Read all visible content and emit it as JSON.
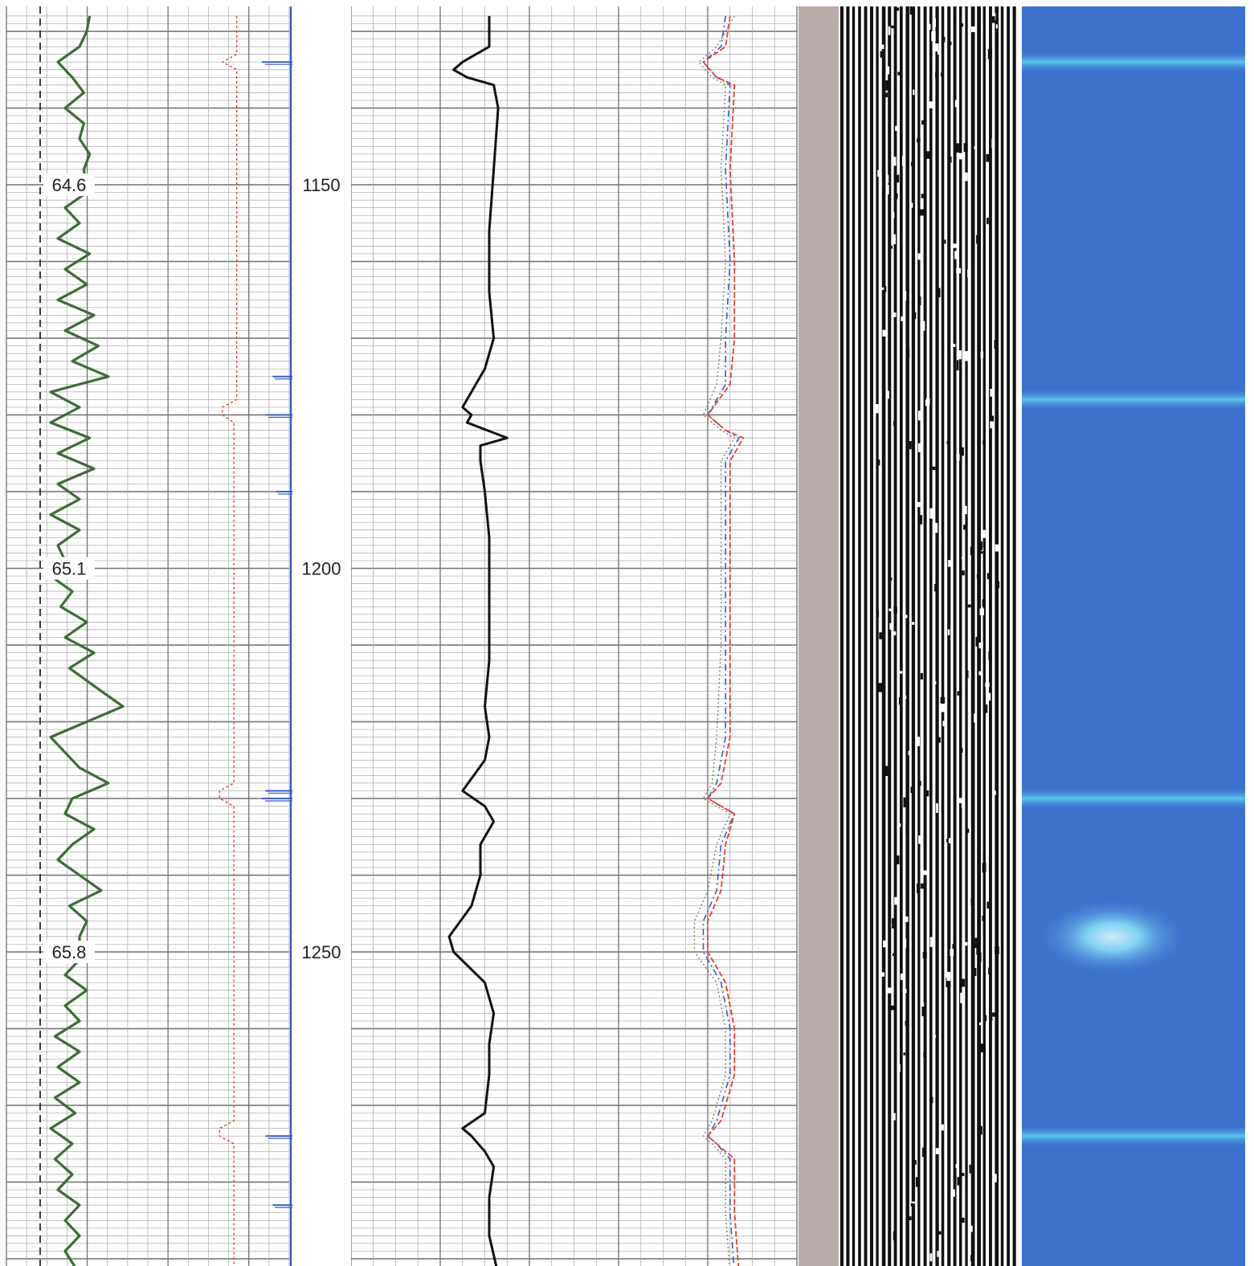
{
  "chart_data": {
    "type": "line",
    "depth_axis": {
      "ticks": [
        1150,
        1200,
        1250
      ],
      "range": [
        1128,
        1292
      ]
    },
    "left_track": {
      "markers": [
        {
          "depth": 1150,
          "label": "64.6"
        },
        {
          "depth": 1200,
          "label": "65.1"
        },
        {
          "depth": 1250,
          "label": "65.8"
        }
      ],
      "green_curve": [
        [
          1128,
          0.62
        ],
        [
          1130,
          0.6
        ],
        [
          1132,
          0.55
        ],
        [
          1134,
          0.4
        ],
        [
          1136,
          0.5
        ],
        [
          1138,
          0.58
        ],
        [
          1140,
          0.45
        ],
        [
          1142,
          0.58
        ],
        [
          1144,
          0.55
        ],
        [
          1146,
          0.62
        ],
        [
          1148,
          0.58
        ],
        [
          1151,
          0.6
        ],
        [
          1153,
          0.45
        ],
        [
          1155,
          0.55
        ],
        [
          1157,
          0.4
        ],
        [
          1159,
          0.62
        ],
        [
          1161,
          0.45
        ],
        [
          1163,
          0.6
        ],
        [
          1165,
          0.4
        ],
        [
          1167,
          0.65
        ],
        [
          1169,
          0.45
        ],
        [
          1171,
          0.68
        ],
        [
          1173,
          0.5
        ],
        [
          1175,
          0.75
        ],
        [
          1177,
          0.35
        ],
        [
          1179,
          0.55
        ],
        [
          1181,
          0.35
        ],
        [
          1183,
          0.62
        ],
        [
          1185,
          0.4
        ],
        [
          1187,
          0.65
        ],
        [
          1189,
          0.4
        ],
        [
          1191,
          0.55
        ],
        [
          1193,
          0.35
        ],
        [
          1195,
          0.55
        ],
        [
          1197,
          0.4
        ],
        [
          1199,
          0.45
        ],
        [
          1201,
          0.35
        ],
        [
          1203,
          0.5
        ],
        [
          1205,
          0.42
        ],
        [
          1207,
          0.6
        ],
        [
          1209,
          0.45
        ],
        [
          1211,
          0.65
        ],
        [
          1213,
          0.48
        ],
        [
          1216,
          0.7
        ],
        [
          1218,
          0.85
        ],
        [
          1220,
          0.6
        ],
        [
          1222,
          0.35
        ],
        [
          1224,
          0.45
        ],
        [
          1226,
          0.55
        ],
        [
          1228,
          0.75
        ],
        [
          1230,
          0.5
        ],
        [
          1232,
          0.45
        ],
        [
          1234,
          0.65
        ],
        [
          1236,
          0.5
        ],
        [
          1238,
          0.4
        ],
        [
          1240,
          0.55
        ],
        [
          1242,
          0.7
        ],
        [
          1244,
          0.48
        ],
        [
          1246,
          0.6
        ],
        [
          1248,
          0.55
        ],
        [
          1251,
          0.55
        ],
        [
          1253,
          0.45
        ],
        [
          1255,
          0.6
        ],
        [
          1257,
          0.45
        ],
        [
          1259,
          0.55
        ],
        [
          1261,
          0.38
        ],
        [
          1263,
          0.55
        ],
        [
          1265,
          0.4
        ],
        [
          1267,
          0.55
        ],
        [
          1269,
          0.38
        ],
        [
          1271,
          0.52
        ],
        [
          1273,
          0.35
        ],
        [
          1275,
          0.5
        ],
        [
          1277,
          0.38
        ],
        [
          1279,
          0.5
        ],
        [
          1281,
          0.4
        ],
        [
          1283,
          0.55
        ],
        [
          1285,
          0.45
        ],
        [
          1287,
          0.55
        ],
        [
          1289,
          0.45
        ],
        [
          1292,
          0.55
        ]
      ],
      "red_curve": [
        [
          1128,
          0.83
        ],
        [
          1133,
          0.83
        ],
        [
          1134,
          0.78
        ],
        [
          1135,
          0.83
        ],
        [
          1178,
          0.83
        ],
        [
          1179,
          0.78
        ],
        [
          1180,
          0.78
        ],
        [
          1181,
          0.82
        ],
        [
          1228,
          0.82
        ],
        [
          1229,
          0.77
        ],
        [
          1230,
          0.77
        ],
        [
          1231,
          0.82
        ],
        [
          1272,
          0.82
        ],
        [
          1273,
          0.77
        ],
        [
          1274,
          0.77
        ],
        [
          1275,
          0.82
        ],
        [
          1292,
          0.82
        ]
      ],
      "blue_ticks": [
        {
          "depth": 1134,
          "length": 0.8
        },
        {
          "depth": 1175,
          "length": 0.5
        },
        {
          "depth": 1180,
          "length": 0.7
        },
        {
          "depth": 1190,
          "length": 0.4
        },
        {
          "depth": 1229,
          "length": 0.7
        },
        {
          "depth": 1230,
          "length": 0.8
        },
        {
          "depth": 1274,
          "length": 0.7
        },
        {
          "depth": 1283,
          "length": 0.5
        }
      ]
    },
    "middle_track": {
      "black_curve": [
        [
          1128,
          0.31
        ],
        [
          1132,
          0.31
        ],
        [
          1134,
          0.25
        ],
        [
          1135,
          0.23
        ],
        [
          1136,
          0.26
        ],
        [
          1137,
          0.32
        ],
        [
          1140,
          0.33
        ],
        [
          1148,
          0.32
        ],
        [
          1156,
          0.31
        ],
        [
          1164,
          0.31
        ],
        [
          1170,
          0.32
        ],
        [
          1174,
          0.3
        ],
        [
          1176,
          0.28
        ],
        [
          1179,
          0.25
        ],
        [
          1180,
          0.27
        ],
        [
          1181,
          0.26
        ],
        [
          1183,
          0.35
        ],
        [
          1184,
          0.29
        ],
        [
          1186,
          0.29
        ],
        [
          1190,
          0.3
        ],
        [
          1196,
          0.31
        ],
        [
          1200,
          0.31
        ],
        [
          1206,
          0.31
        ],
        [
          1212,
          0.31
        ],
        [
          1218,
          0.3
        ],
        [
          1222,
          0.31
        ],
        [
          1225,
          0.3
        ],
        [
          1229,
          0.25
        ],
        [
          1231,
          0.3
        ],
        [
          1233,
          0.32
        ],
        [
          1236,
          0.29
        ],
        [
          1240,
          0.29
        ],
        [
          1244,
          0.27
        ],
        [
          1248,
          0.22
        ],
        [
          1250,
          0.23
        ],
        [
          1254,
          0.3
        ],
        [
          1258,
          0.32
        ],
        [
          1262,
          0.31
        ],
        [
          1266,
          0.31
        ],
        [
          1271,
          0.3
        ],
        [
          1273,
          0.25
        ],
        [
          1274,
          0.27
        ],
        [
          1276,
          0.3
        ],
        [
          1278,
          0.32
        ],
        [
          1282,
          0.31
        ],
        [
          1287,
          0.31
        ],
        [
          1292,
          0.33
        ]
      ],
      "red_curve": [
        [
          1128,
          0.85
        ],
        [
          1132,
          0.84
        ],
        [
          1134,
          0.79
        ],
        [
          1136,
          0.82
        ],
        [
          1137,
          0.86
        ],
        [
          1148,
          0.85
        ],
        [
          1160,
          0.86
        ],
        [
          1170,
          0.86
        ],
        [
          1176,
          0.85
        ],
        [
          1180,
          0.8
        ],
        [
          1182,
          0.84
        ],
        [
          1183,
          0.88
        ],
        [
          1186,
          0.85
        ],
        [
          1196,
          0.85
        ],
        [
          1210,
          0.85
        ],
        [
          1222,
          0.85
        ],
        [
          1228,
          0.83
        ],
        [
          1230,
          0.8
        ],
        [
          1231,
          0.83
        ],
        [
          1232,
          0.86
        ],
        [
          1236,
          0.84
        ],
        [
          1242,
          0.83
        ],
        [
          1246,
          0.8
        ],
        [
          1250,
          0.8
        ],
        [
          1254,
          0.84
        ],
        [
          1260,
          0.86
        ],
        [
          1266,
          0.86
        ],
        [
          1272,
          0.83
        ],
        [
          1274,
          0.8
        ],
        [
          1275,
          0.82
        ],
        [
          1277,
          0.86
        ],
        [
          1284,
          0.86
        ],
        [
          1292,
          0.87
        ]
      ],
      "blue_curve": [
        [
          1128,
          0.84
        ],
        [
          1132,
          0.83
        ],
        [
          1134,
          0.79
        ],
        [
          1136,
          0.82
        ],
        [
          1137,
          0.85
        ],
        [
          1148,
          0.84
        ],
        [
          1160,
          0.85
        ],
        [
          1170,
          0.84
        ],
        [
          1176,
          0.84
        ],
        [
          1180,
          0.8
        ],
        [
          1182,
          0.84
        ],
        [
          1183,
          0.87
        ],
        [
          1186,
          0.84
        ],
        [
          1196,
          0.84
        ],
        [
          1210,
          0.84
        ],
        [
          1222,
          0.84
        ],
        [
          1228,
          0.82
        ],
        [
          1230,
          0.8
        ],
        [
          1231,
          0.83
        ],
        [
          1232,
          0.86
        ],
        [
          1236,
          0.83
        ],
        [
          1242,
          0.82
        ],
        [
          1246,
          0.79
        ],
        [
          1250,
          0.79
        ],
        [
          1254,
          0.83
        ],
        [
          1260,
          0.85
        ],
        [
          1266,
          0.85
        ],
        [
          1272,
          0.82
        ],
        [
          1274,
          0.8
        ],
        [
          1275,
          0.82
        ],
        [
          1277,
          0.85
        ],
        [
          1284,
          0.85
        ],
        [
          1292,
          0.86
        ]
      ],
      "gray_curve": [
        [
          1128,
          0.86
        ],
        [
          1132,
          0.82
        ],
        [
          1134,
          0.78
        ],
        [
          1136,
          0.81
        ],
        [
          1137,
          0.84
        ],
        [
          1148,
          0.83
        ],
        [
          1160,
          0.84
        ],
        [
          1170,
          0.83
        ],
        [
          1176,
          0.82
        ],
        [
          1180,
          0.79
        ],
        [
          1182,
          0.83
        ],
        [
          1183,
          0.86
        ],
        [
          1186,
          0.83
        ],
        [
          1196,
          0.83
        ],
        [
          1210,
          0.83
        ],
        [
          1222,
          0.82
        ],
        [
          1228,
          0.81
        ],
        [
          1230,
          0.79
        ],
        [
          1231,
          0.82
        ],
        [
          1232,
          0.85
        ],
        [
          1236,
          0.82
        ],
        [
          1242,
          0.8
        ],
        [
          1246,
          0.77
        ],
        [
          1250,
          0.77
        ],
        [
          1254,
          0.82
        ],
        [
          1260,
          0.84
        ],
        [
          1266,
          0.84
        ],
        [
          1272,
          0.81
        ],
        [
          1274,
          0.79
        ],
        [
          1275,
          0.81
        ],
        [
          1277,
          0.84
        ],
        [
          1284,
          0.84
        ],
        [
          1292,
          0.85
        ]
      ]
    },
    "image_track": {
      "bright_bands_depths": [
        1134,
        1178,
        1230,
        1274
      ],
      "bright_spot_depth": 1247
    },
    "colors": {
      "grid": "#8c8c8c",
      "green": "#3f6b3a",
      "red": "#e8402a",
      "blue": "#3a5cc0",
      "black": "#111111",
      "gray_separator": "#b8aaa8",
      "blue_image": "#3d72cf",
      "blue_band": "#5ec4ee"
    }
  }
}
